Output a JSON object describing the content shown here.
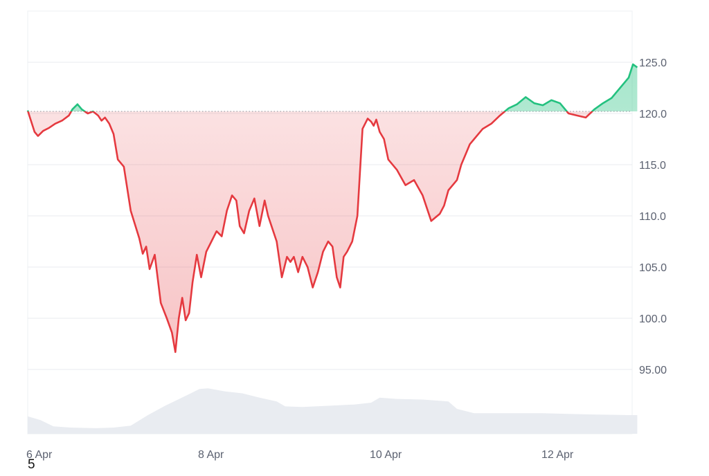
{
  "chart_data": {
    "type": "line",
    "subtype": "price-with-baseline-and-volume",
    "title": "",
    "xlabel": "",
    "ylabel": "",
    "baseline": 120.2,
    "ylim": [
      90,
      130
    ],
    "yticks": [
      {
        "value": 125,
        "label": "125.0"
      },
      {
        "value": 120,
        "label": "120.0"
      },
      {
        "value": 115,
        "label": "115.0"
      },
      {
        "value": 110,
        "label": "110.0"
      },
      {
        "value": 105,
        "label": "105.0"
      },
      {
        "value": 100,
        "label": "100.0"
      },
      {
        "value": 95,
        "label": "95.00"
      }
    ],
    "xlim_days": [
      0,
      7.1
    ],
    "xticks": [
      {
        "day": 0.0,
        "label": "6 Apr"
      },
      {
        "day": 2.0,
        "label": "8 Apr"
      },
      {
        "day": 4.0,
        "label": "10 Apr"
      },
      {
        "day": 6.0,
        "label": "12 Apr"
      }
    ],
    "series": [
      {
        "x": [
          0.0,
          0.03,
          0.08,
          0.12,
          0.18,
          0.25,
          0.32,
          0.4,
          0.48,
          0.52,
          0.58,
          0.63,
          0.7,
          0.76,
          0.82,
          0.86,
          0.9,
          0.95,
          1.0,
          1.05,
          1.12,
          1.2,
          1.3,
          1.34,
          1.38,
          1.42,
          1.48,
          1.55,
          1.62,
          1.68,
          1.72,
          1.76,
          1.8,
          1.84,
          1.88,
          1.92,
          1.97,
          2.02,
          2.08,
          2.14,
          2.2,
          2.26,
          2.32,
          2.38,
          2.43,
          2.47,
          2.52,
          2.58,
          2.64,
          2.7,
          2.76,
          2.8,
          2.84,
          2.9,
          2.96,
          3.02,
          3.06,
          3.1,
          3.15,
          3.2,
          3.26,
          3.32,
          3.38,
          3.44,
          3.5,
          3.55,
          3.6,
          3.64,
          3.68,
          3.72,
          3.78,
          3.84,
          3.9,
          3.96,
          4.0,
          4.03,
          4.06,
          4.1,
          4.15,
          4.2,
          4.3,
          4.4,
          4.5,
          4.6,
          4.7,
          4.8,
          4.85,
          4.9,
          5.0,
          5.05,
          5.1,
          5.15,
          5.2,
          5.3,
          5.4,
          5.5,
          5.6,
          5.7,
          5.8,
          5.9,
          6.0,
          6.1,
          6.2,
          6.3,
          6.4,
          6.5,
          6.6,
          6.7,
          6.8,
          6.9,
          7.0,
          7.05,
          7.1
        ],
        "values": [
          120.3,
          119.5,
          118.2,
          117.8,
          118.3,
          118.6,
          119.0,
          119.3,
          119.8,
          120.4,
          120.9,
          120.4,
          120.0,
          120.2,
          119.8,
          119.3,
          119.6,
          119.0,
          118.0,
          115.5,
          114.8,
          110.5,
          107.8,
          106.3,
          107.0,
          104.8,
          106.2,
          101.5,
          100.0,
          98.6,
          96.7,
          100.0,
          102.0,
          99.8,
          100.5,
          103.5,
          106.2,
          104.0,
          106.5,
          107.5,
          108.5,
          108.0,
          110.5,
          112.0,
          111.5,
          109.0,
          108.3,
          110.5,
          111.7,
          109.0,
          111.5,
          110.0,
          109.0,
          107.5,
          104.0,
          106.0,
          105.5,
          106.0,
          104.5,
          106.0,
          105.0,
          103.0,
          104.5,
          106.5,
          107.5,
          107.0,
          104.0,
          103.0,
          106.0,
          106.5,
          107.5,
          110.0,
          118.5,
          119.5,
          119.2,
          118.8,
          119.4,
          118.2,
          117.5,
          115.5,
          114.5,
          113.0,
          113.5,
          112.0,
          109.5,
          110.2,
          111.0,
          112.5,
          113.5,
          115.0,
          116.0,
          117.0,
          117.5,
          118.5,
          119.0,
          119.8,
          120.5,
          120.9,
          121.6,
          121.0,
          120.8,
          121.3,
          121.0,
          120.0,
          119.8,
          119.6,
          120.4,
          121.0,
          121.5,
          122.5,
          123.5,
          124.8,
          124.5
        ]
      }
    ],
    "volume": {
      "x": [
        0.0,
        0.15,
        0.3,
        0.5,
        0.8,
        1.0,
        1.2,
        1.4,
        1.6,
        1.75,
        1.9,
        2.0,
        2.1,
        2.3,
        2.5,
        2.7,
        2.9,
        3.0,
        3.2,
        3.5,
        3.8,
        4.0,
        4.1,
        4.3,
        4.6,
        4.9,
        5.0,
        5.2,
        5.5,
        5.8,
        6.0,
        6.3,
        6.6,
        7.0,
        7.1
      ],
      "values": [
        0.28,
        0.22,
        0.12,
        0.1,
        0.09,
        0.1,
        0.13,
        0.3,
        0.45,
        0.55,
        0.65,
        0.72,
        0.73,
        0.68,
        0.65,
        0.58,
        0.52,
        0.44,
        0.43,
        0.45,
        0.47,
        0.5,
        0.58,
        0.56,
        0.55,
        0.52,
        0.4,
        0.33,
        0.33,
        0.33,
        0.33,
        0.32,
        0.31,
        0.3,
        0.3
      ]
    },
    "colors": {
      "up_line": "#23c17f",
      "up_fill": "#b9ecd2",
      "down_line": "#e5393f",
      "down_fill": "#f8d6d7",
      "baseline": "#8a8f9a",
      "grid": "#e9ebef",
      "volume": "#e9ecf1",
      "tick_text": "#5b6170"
    },
    "grid": true,
    "legend": "none",
    "axis_side": "right"
  },
  "footnote": "5"
}
